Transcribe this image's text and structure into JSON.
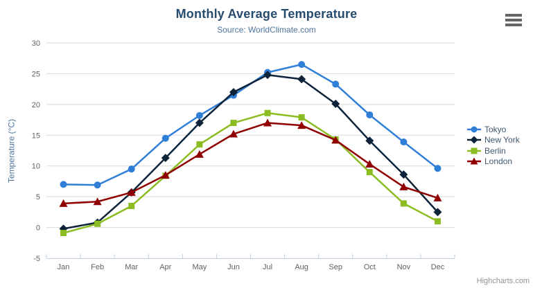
{
  "header": {
    "title": "Monthly Average Temperature",
    "subtitle": "Source: WorldClimate.com"
  },
  "menu": {
    "hamburger_icon": "chart-context-menu"
  },
  "credits": {
    "label": "Highcharts.com"
  },
  "theme": {
    "title_color": "#274b6d",
    "subtitle_color": "#4d759e",
    "axis_label_color": "#606060",
    "axis_title_color": "#4d759e",
    "legend_text_color": "#3e576f",
    "gridline_color": "#d8d8d8",
    "axis_line_color": "#c0d0e0",
    "credits_color": "#909090"
  },
  "chart_data": {
    "type": "line",
    "title": "Monthly Average Temperature",
    "subtitle": "Source: WorldClimate.com",
    "xlabel": "",
    "ylabel": "Temperature (°C)",
    "ylim": [
      -5,
      30
    ],
    "ytick_interval": 5,
    "grid": true,
    "legend_position": "right",
    "categories": [
      "Jan",
      "Feb",
      "Mar",
      "Apr",
      "May",
      "Jun",
      "Jul",
      "Aug",
      "Sep",
      "Oct",
      "Nov",
      "Dec"
    ],
    "series": [
      {
        "name": "Tokyo",
        "color": "#2f7ed8",
        "marker": "circle",
        "values": [
          7.0,
          6.9,
          9.5,
          14.5,
          18.2,
          21.5,
          25.2,
          26.5,
          23.3,
          18.3,
          13.9,
          9.6
        ]
      },
      {
        "name": "New York",
        "color": "#0d233a",
        "marker": "diamond",
        "values": [
          -0.2,
          0.8,
          5.7,
          11.3,
          17.0,
          22.0,
          24.8,
          24.1,
          20.1,
          14.1,
          8.6,
          2.5
        ]
      },
      {
        "name": "Berlin",
        "color": "#8bbc21",
        "marker": "square",
        "values": [
          -0.9,
          0.6,
          3.5,
          8.4,
          13.5,
          17.0,
          18.6,
          17.9,
          14.3,
          9.0,
          3.9,
          1.0
        ]
      },
      {
        "name": "London",
        "color": "#910000",
        "marker": "triangle",
        "values": [
          3.9,
          4.2,
          5.7,
          8.5,
          11.9,
          15.2,
          17.0,
          16.6,
          14.2,
          10.3,
          6.6,
          4.8
        ]
      }
    ]
  }
}
